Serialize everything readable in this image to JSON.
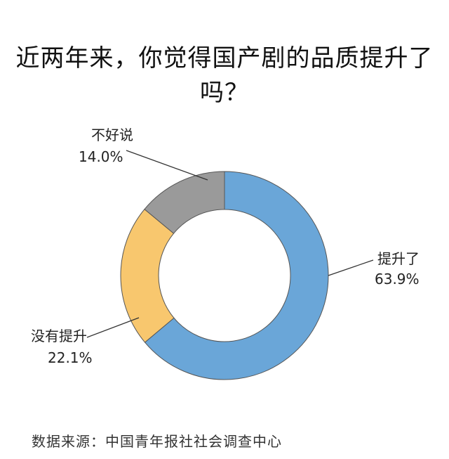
{
  "chart_data": {
    "type": "pie",
    "title": "近两年来，你觉得国产剧的品质提升了吗？",
    "slices": [
      {
        "label": "提升了",
        "value_text": "63.9%",
        "value": 63.9,
        "color": "#6aa6d8"
      },
      {
        "label": "没有提升",
        "value_text": "22.1%",
        "value": 22.1,
        "color": "#f8c76e"
      },
      {
        "label": "不好说",
        "value_text": "14.0%",
        "value": 14.0,
        "color": "#9a9a9a"
      }
    ]
  },
  "source": "数据来源：中国青年报社社会调查中心"
}
